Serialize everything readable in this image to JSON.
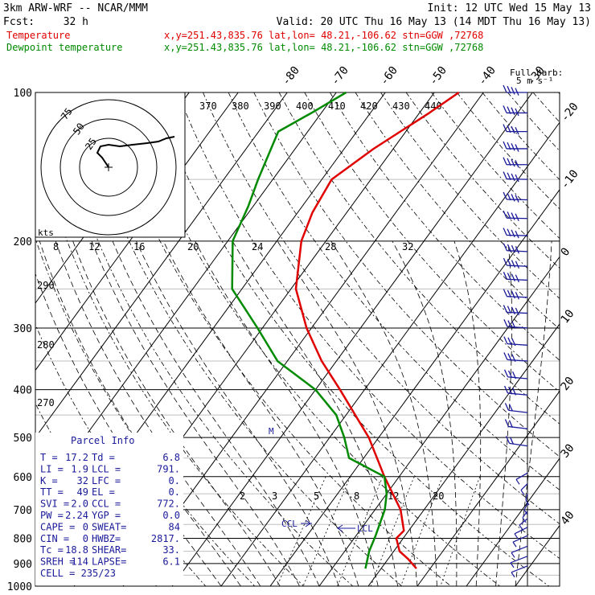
{
  "header": {
    "model": "3km ARW-WRF -- NCAR/MMM",
    "init": "Init: 12 UTC Wed 15 May 13",
    "fcst_label": "Fcst:",
    "fcst_value": "32 h",
    "valid": "Valid: 20 UTC Thu 16 May 13 (14 MDT Thu 16 May 13)"
  },
  "legend": [
    {
      "name": "Temperature",
      "info": "x,y=251.43,835.76   lat,lon= 48.21,-106.62   stn=GGW ,72768",
      "color": "#e00000"
    },
    {
      "name": "Dewpoint temperature",
      "info": "x,y=251.43,835.76   lat,lon= 48.21,-106.62   stn=GGW ,72768",
      "color": "#008a00"
    }
  ],
  "barb_legend": {
    "line1": "Full barb:",
    "line2": "5 m s⁻¹"
  },
  "hodograph": {
    "ring_labels": [
      "25",
      "50",
      "75"
    ],
    "unit": "kts",
    "trace": [
      [
        0,
        0
      ],
      [
        -8,
        12
      ],
      [
        -14,
        18
      ],
      [
        -10,
        26
      ],
      [
        0,
        28
      ],
      [
        14,
        26
      ],
      [
        30,
        28
      ],
      [
        48,
        30
      ],
      [
        62,
        32
      ],
      [
        72,
        36
      ],
      [
        82,
        38
      ]
    ]
  },
  "parcel_info": {
    "title": "Parcel Info",
    "rows": [
      [
        "T  =",
        "17.2",
        "Td =",
        "6.8"
      ],
      [
        "LI =",
        "1.9",
        "LCL =",
        "791."
      ],
      [
        "K  =",
        "32",
        "LFC =",
        "0."
      ],
      [
        "TT =",
        "49",
        "EL  =",
        "0."
      ],
      [
        "SVI =",
        "2.0",
        "CCL =",
        "772."
      ],
      [
        "PW =",
        "2.24",
        "YGP =",
        "0.0"
      ],
      [
        "CAPE =",
        "0",
        "SWEAT=",
        "84"
      ],
      [
        "CIN =",
        "0",
        "HWBZ=",
        "2817."
      ],
      [
        "Tc =",
        "18.8",
        "SHEAR=",
        "33."
      ],
      [
        "SREH =",
        "114",
        "LAPSE=",
        "6.1"
      ]
    ],
    "cell": "CELL = 235/23"
  },
  "annotations": {
    "ccl": "CCL",
    "lcl": "LCL"
  },
  "chart_data": {
    "type": "skew-t",
    "y_axis": "pressure (hPa), log scale",
    "pressure_ticks": [
      100,
      200,
      300,
      400,
      500,
      600,
      700,
      800,
      900,
      1000
    ],
    "isotherm_labels": [
      -80,
      -70,
      -60,
      -50,
      -40,
      -30,
      -20,
      -10,
      0,
      10,
      20,
      30,
      40
    ],
    "theta_labels": [
      370,
      380,
      390,
      400,
      410,
      420,
      430,
      440
    ],
    "upper_isotherm_labels": [
      8,
      12,
      16,
      20,
      24,
      28,
      32
    ],
    "mixing_ratio_labels": [
      "2",
      "3",
      "5",
      "8",
      "12",
      "20"
    ],
    "theta_side_labels": [
      "290",
      "280",
      "270"
    ],
    "series": [
      {
        "name": "Temperature",
        "color": "#e00000",
        "points": [
          [
            921,
            17.2
          ],
          [
            880,
            14.0
          ],
          [
            850,
            11.2
          ],
          [
            800,
            8.6
          ],
          [
            772,
            9.0
          ],
          [
            700,
            5.2
          ],
          [
            600,
            -3.0
          ],
          [
            500,
            -12.0
          ],
          [
            400,
            -25.0
          ],
          [
            350,
            -33.0
          ],
          [
            300,
            -41.0
          ],
          [
            250,
            -49.0
          ],
          [
            200,
            -55.0
          ],
          [
            175,
            -57.0
          ],
          [
            150,
            -58.0
          ],
          [
            130,
            -54.0
          ],
          [
            110,
            -48.0
          ],
          [
            100,
            -45.0
          ]
        ]
      },
      {
        "name": "Dewpoint temperature",
        "color": "#008a00",
        "points": [
          [
            921,
            6.8
          ],
          [
            850,
            5.0
          ],
          [
            791,
            4.0
          ],
          [
            700,
            2.0
          ],
          [
            650,
            0.0
          ],
          [
            600,
            -3.0
          ],
          [
            550,
            -13.0
          ],
          [
            500,
            -17.0
          ],
          [
            450,
            -22.0
          ],
          [
            400,
            -30.0
          ],
          [
            350,
            -42.0
          ],
          [
            300,
            -51.0
          ],
          [
            250,
            -62.0
          ],
          [
            200,
            -69.0
          ],
          [
            170,
            -71.0
          ],
          [
            150,
            -73.0
          ],
          [
            120,
            -76.0
          ],
          [
            110,
            -72.0
          ],
          [
            100,
            -68.0
          ]
        ]
      }
    ],
    "wind_barbs_kts": [
      {
        "p": 100,
        "dir": 270,
        "spd": 35
      },
      {
        "p": 110,
        "dir": 270,
        "spd": 35
      },
      {
        "p": 120,
        "dir": 270,
        "spd": 35
      },
      {
        "p": 130,
        "dir": 270,
        "spd": 35
      },
      {
        "p": 140,
        "dir": 270,
        "spd": 35
      },
      {
        "p": 150,
        "dir": 265,
        "spd": 40
      },
      {
        "p": 165,
        "dir": 265,
        "spd": 40
      },
      {
        "p": 180,
        "dir": 265,
        "spd": 40
      },
      {
        "p": 195,
        "dir": 265,
        "spd": 40
      },
      {
        "p": 210,
        "dir": 260,
        "spd": 40
      },
      {
        "p": 225,
        "dir": 260,
        "spd": 40
      },
      {
        "p": 240,
        "dir": 260,
        "spd": 35
      },
      {
        "p": 260,
        "dir": 260,
        "spd": 35
      },
      {
        "p": 280,
        "dir": 260,
        "spd": 35
      },
      {
        "p": 300,
        "dir": 255,
        "spd": 30
      },
      {
        "p": 325,
        "dir": 255,
        "spd": 30
      },
      {
        "p": 350,
        "dir": 255,
        "spd": 25
      },
      {
        "p": 380,
        "dir": 250,
        "spd": 25
      },
      {
        "p": 410,
        "dir": 250,
        "spd": 25
      },
      {
        "p": 445,
        "dir": 245,
        "spd": 20
      },
      {
        "p": 480,
        "dir": 245,
        "spd": 20
      },
      {
        "p": 520,
        "dir": 240,
        "spd": 15
      }
    ]
  }
}
